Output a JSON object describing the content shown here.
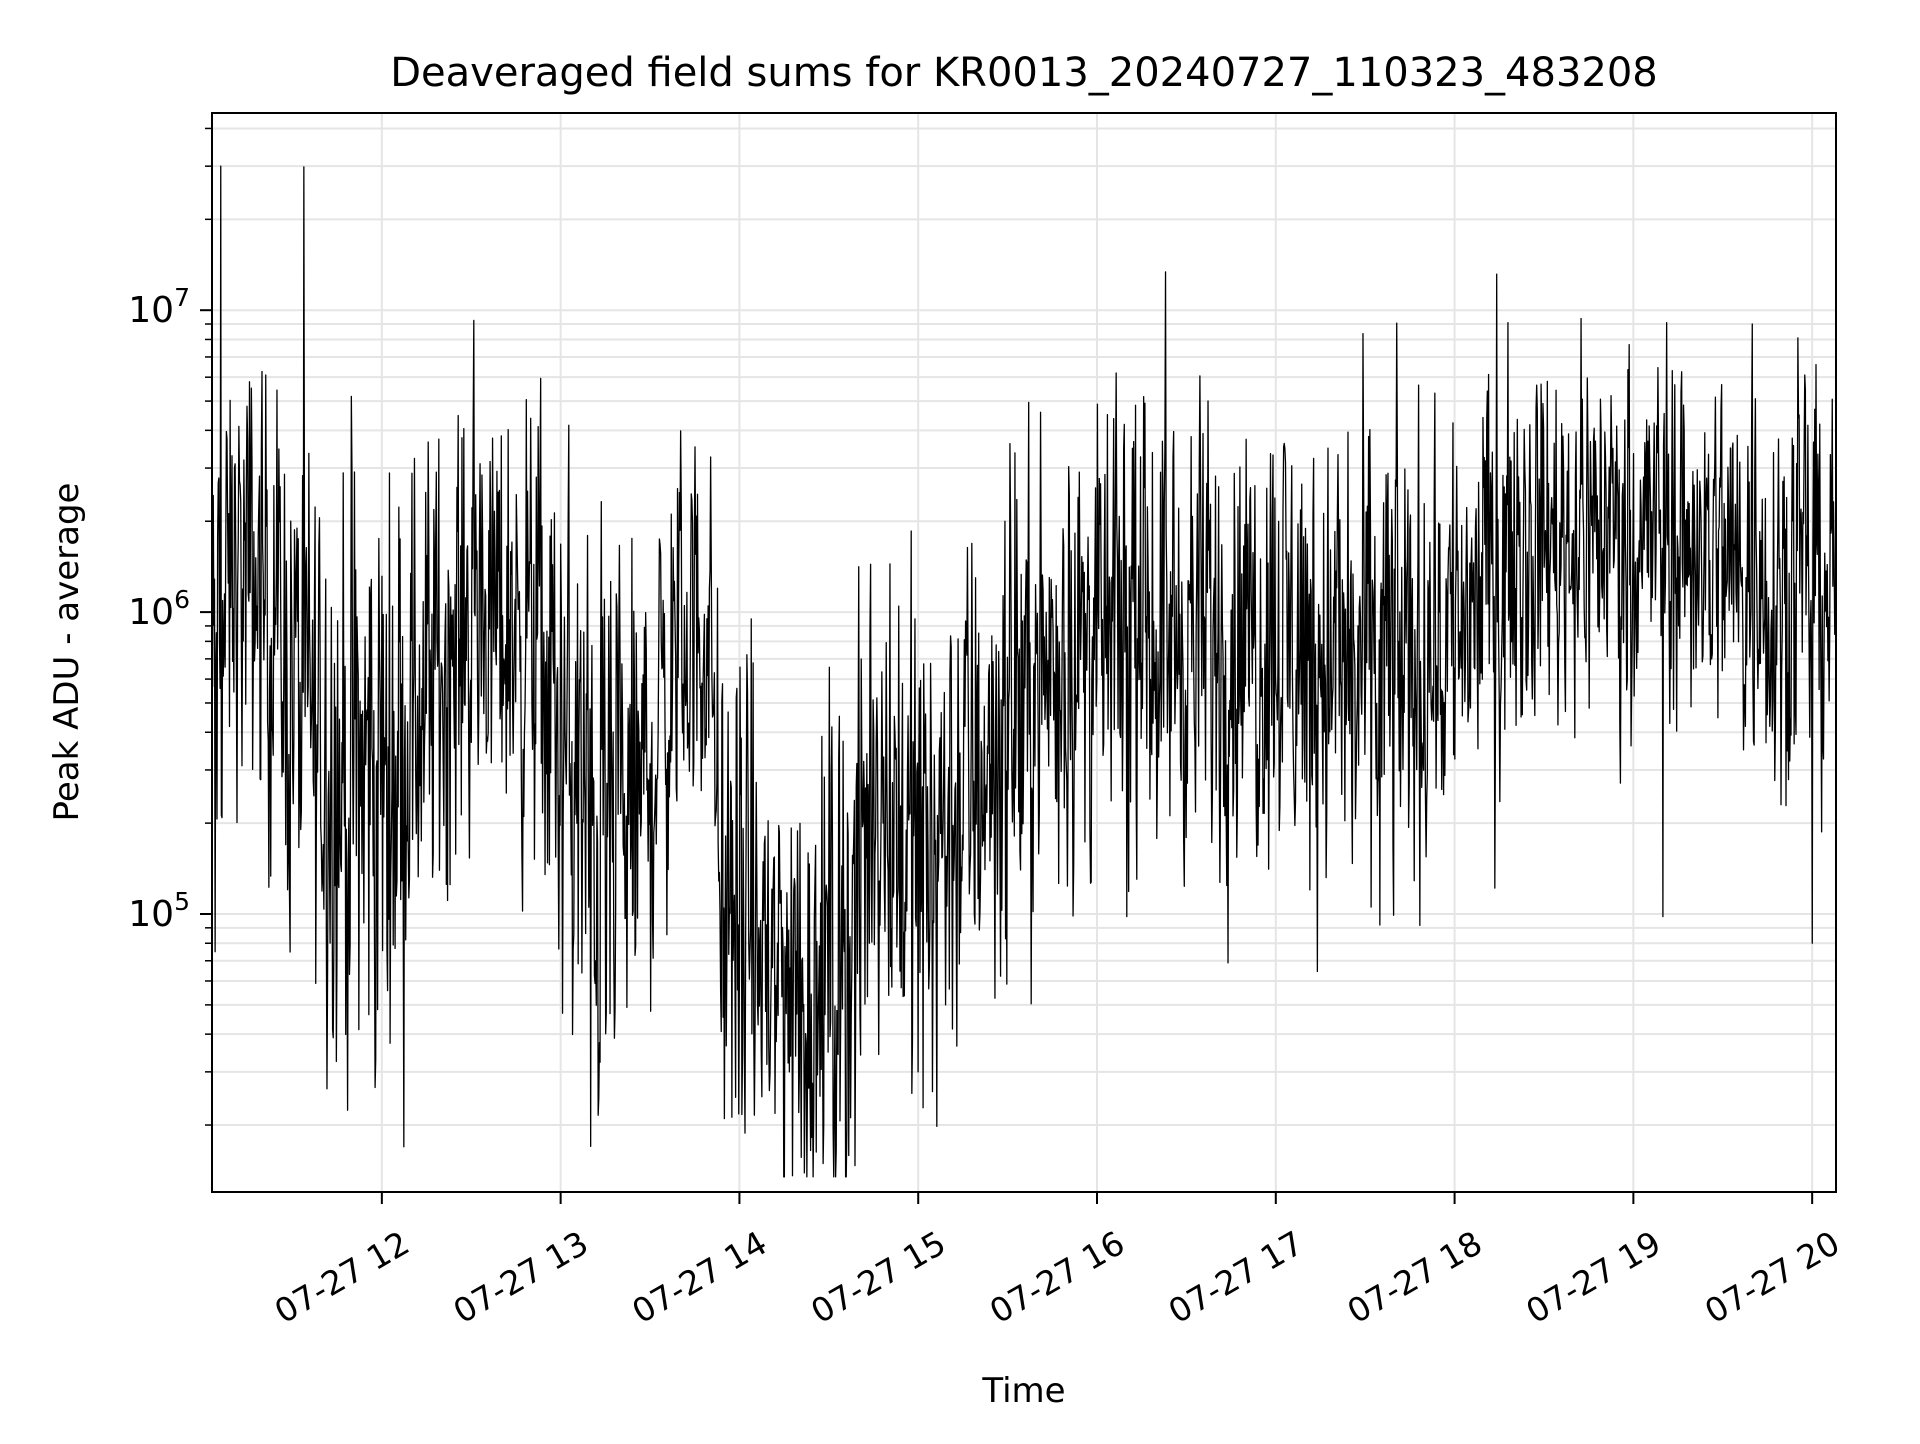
{
  "chart_data": {
    "type": "line",
    "title": "Deaveraged field sums for KR0013_20240727_110323_483208",
    "xlabel": "Time",
    "ylabel": "Peak ADU - average",
    "y_scale": "log",
    "ylim": [
      12000,
      45000000
    ],
    "xlim": [
      "2024-07-27 11:03",
      "2024-07-27 20:08"
    ],
    "grid": true,
    "line_color": "#000000",
    "grid_color": "#e5e5e5",
    "x_ticks": [
      {
        "label": "07-27 12",
        "time": "2024-07-27 12:00"
      },
      {
        "label": "07-27 13",
        "time": "2024-07-27 13:00"
      },
      {
        "label": "07-27 14",
        "time": "2024-07-27 14:00"
      },
      {
        "label": "07-27 15",
        "time": "2024-07-27 15:00"
      },
      {
        "label": "07-27 16",
        "time": "2024-07-27 16:00"
      },
      {
        "label": "07-27 17",
        "time": "2024-07-27 17:00"
      },
      {
        "label": "07-27 18",
        "time": "2024-07-27 18:00"
      },
      {
        "label": "07-27 19",
        "time": "2024-07-27 19:00"
      },
      {
        "label": "07-27 20",
        "time": "2024-07-27 20:00"
      }
    ],
    "y_ticks": [
      {
        "label": "10",
        "exponent": "5",
        "value": 100000
      },
      {
        "label": "10",
        "exponent": "6",
        "value": 1000000
      },
      {
        "label": "10",
        "exponent": "7",
        "value": 10000000
      }
    ],
    "series": [
      {
        "envelope": [
          {
            "time": "2024-07-27 11:03",
            "center": 500000,
            "spread": 1.2
          },
          {
            "time": "2024-07-27 11:10",
            "center": 1300000,
            "spread": 0.9
          },
          {
            "time": "2024-07-27 11:20",
            "center": 1200000,
            "spread": 1.0
          },
          {
            "time": "2024-07-27 11:30",
            "center": 600000,
            "spread": 1.1
          },
          {
            "time": "2024-07-27 11:45",
            "center": 300000,
            "spread": 1.3
          },
          {
            "time": "2024-07-27 11:55",
            "center": 250000,
            "spread": 1.4
          },
          {
            "time": "2024-07-27 12:10",
            "center": 450000,
            "spread": 1.2
          },
          {
            "time": "2024-07-27 12:30",
            "center": 1000000,
            "spread": 0.9
          },
          {
            "time": "2024-07-27 12:50",
            "center": 900000,
            "spread": 1.0
          },
          {
            "time": "2024-07-27 13:05",
            "center": 250000,
            "spread": 1.3
          },
          {
            "time": "2024-07-27 13:15",
            "center": 150000,
            "spread": 1.3
          },
          {
            "time": "2024-07-27 13:25",
            "center": 200000,
            "spread": 1.1
          },
          {
            "time": "2024-07-27 13:40",
            "center": 800000,
            "spread": 0.9
          },
          {
            "time": "2024-07-27 13:50",
            "center": 900000,
            "spread": 0.8
          },
          {
            "time": "2024-07-27 13:55",
            "center": 100000,
            "spread": 1.2
          },
          {
            "time": "2024-07-27 14:10",
            "center": 70000,
            "spread": 1.1
          },
          {
            "time": "2024-07-27 14:25",
            "center": 55000,
            "spread": 1.1
          },
          {
            "time": "2024-07-27 14:40",
            "center": 90000,
            "spread": 1.2
          },
          {
            "time": "2024-07-27 14:45",
            "center": 350000,
            "spread": 1.2
          },
          {
            "time": "2024-07-27 15:00",
            "center": 150000,
            "spread": 1.2
          },
          {
            "time": "2024-07-27 15:20",
            "center": 300000,
            "spread": 1.1
          },
          {
            "time": "2024-07-27 15:45",
            "center": 700000,
            "spread": 1.0
          },
          {
            "time": "2024-07-27 16:10",
            "center": 900000,
            "spread": 0.9
          },
          {
            "time": "2024-07-27 16:40",
            "center": 800000,
            "spread": 1.0
          },
          {
            "time": "2024-07-27 17:00",
            "center": 900000,
            "spread": 1.0
          },
          {
            "time": "2024-07-27 17:30",
            "center": 600000,
            "spread": 1.1
          },
          {
            "time": "2024-07-27 17:55",
            "center": 800000,
            "spread": 1.0
          },
          {
            "time": "2024-07-27 18:20",
            "center": 1700000,
            "spread": 0.8
          },
          {
            "time": "2024-07-27 18:50",
            "center": 2000000,
            "spread": 0.8
          },
          {
            "time": "2024-07-27 19:20",
            "center": 1700000,
            "spread": 0.8
          },
          {
            "time": "2024-07-27 19:45",
            "center": 1300000,
            "spread": 0.9
          },
          {
            "time": "2024-07-27 20:08",
            "center": 1300000,
            "spread": 0.9
          }
        ],
        "spikes": [
          {
            "time": "2024-07-27 11:06",
            "value": 30000000
          },
          {
            "time": "2024-07-27 19:40",
            "value": 9000000
          },
          {
            "time": "2024-07-27 13:10",
            "value": 17000
          },
          {
            "time": "2024-07-27 13:55",
            "value": 21000
          },
          {
            "time": "2024-07-27 14:20",
            "value": 22000
          },
          {
            "time": "2024-07-27 11:58",
            "value": 33000
          },
          {
            "time": "2024-07-27 15:00",
            "value": 30000
          },
          {
            "time": "2024-07-27 11:04",
            "value": 75000
          },
          {
            "time": "2024-07-27 20:00",
            "value": 80000
          },
          {
            "time": "2024-07-27 19:10",
            "value": 98000
          },
          {
            "time": "2024-07-27 17:35",
            "value": 92000
          },
          {
            "time": "2024-07-27 16:10",
            "value": 98000
          }
        ]
      }
    ]
  }
}
